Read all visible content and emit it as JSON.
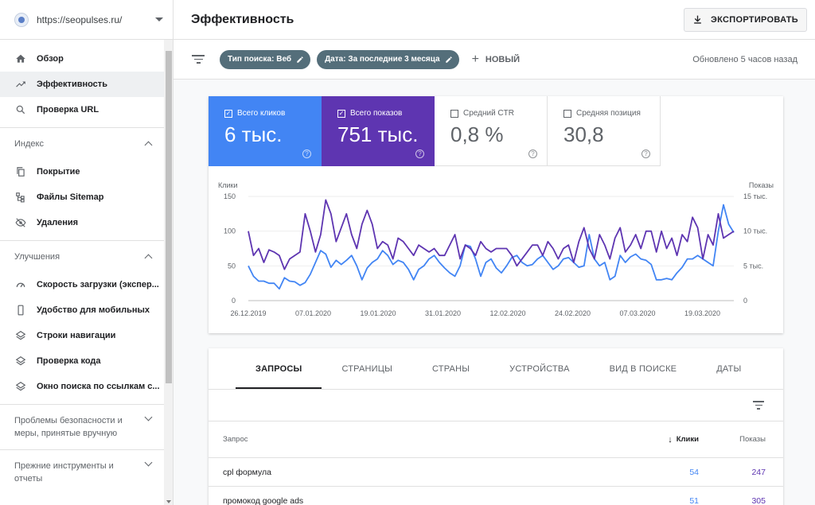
{
  "property": {
    "url": "https://seopulses.ru/"
  },
  "sidebar": {
    "top_items": [
      {
        "label": "Обзор",
        "icon": "home-icon"
      },
      {
        "label": "Эффективность",
        "icon": "trending-up-icon",
        "active": true
      },
      {
        "label": "Проверка URL",
        "icon": "search-icon"
      }
    ],
    "sections": [
      {
        "title": "Индекс",
        "items": [
          {
            "label": "Покрытие",
            "icon": "copy-icon"
          },
          {
            "label": "Файлы Sitemap",
            "icon": "sitemap-icon"
          },
          {
            "label": "Удаления",
            "icon": "eye-off-icon"
          }
        ]
      },
      {
        "title": "Улучшения",
        "items": [
          {
            "label": "Скорость загрузки (экспер...",
            "icon": "speed-icon"
          },
          {
            "label": "Удобство для мобильных",
            "icon": "phone-icon"
          },
          {
            "label": "Строки навигации",
            "icon": "layers-icon"
          },
          {
            "label": "Проверка кода",
            "icon": "layers-icon"
          },
          {
            "label": "Окно поиска по ссылкам с...",
            "icon": "layers-icon"
          }
        ]
      }
    ],
    "collapsed_sections": [
      "Проблемы безопасности и меры, принятые вручную",
      "Прежние инструменты и отчеты"
    ]
  },
  "header": {
    "title": "Эффективность",
    "export_label": "ЭКСПОРТИРОВАТЬ"
  },
  "filters": {
    "chips": [
      "Тип поиска: Веб",
      "Дата: За последние 3 месяца"
    ],
    "new_label": "НОВЫЙ",
    "updated": "Обновлено 5 часов назад"
  },
  "metrics": [
    {
      "label": "Всего кликов",
      "value": "6 тыс.",
      "checked": true,
      "color": "#4285f4"
    },
    {
      "label": "Всего показов",
      "value": "751 тыс.",
      "checked": true,
      "color": "#5e35b1"
    },
    {
      "label": "Средний CTR",
      "value": "0,8 %",
      "checked": false
    },
    {
      "label": "Средняя позиция",
      "value": "30,8",
      "checked": false
    }
  ],
  "chart_data": {
    "type": "line",
    "left_axis_label": "Клики",
    "right_axis_label": "Показы",
    "left_ticks": [
      "150",
      "100",
      "50",
      "0"
    ],
    "right_ticks": [
      "15 тыс.",
      "10 тыс.",
      "5 тыс.",
      "0"
    ],
    "ylim_left": [
      0,
      150
    ],
    "ylim_right": [
      0,
      15000
    ],
    "x_ticks": [
      "26.12.2019",
      "07.01.2020",
      "19.01.2020",
      "31.01.2020",
      "12.02.2020",
      "24.02.2020",
      "07.03.2020",
      "19.03.2020"
    ],
    "series": [
      {
        "name": "Клики",
        "color": "#4285f4",
        "axis": "left",
        "values": [
          50,
          35,
          28,
          28,
          25,
          25,
          17,
          33,
          28,
          27,
          22,
          26,
          38,
          55,
          72,
          67,
          48,
          58,
          52,
          58,
          65,
          50,
          30,
          47,
          55,
          60,
          72,
          65,
          52,
          58,
          55,
          45,
          30,
          45,
          50,
          60,
          65,
          55,
          47,
          40,
          35,
          50,
          80,
          78,
          60,
          35,
          55,
          60,
          47,
          40,
          50,
          62,
          65,
          55,
          50,
          52,
          60,
          65,
          55,
          45,
          50,
          60,
          62,
          55,
          48,
          50,
          95,
          60,
          50,
          55,
          30,
          35,
          65,
          55,
          63,
          67,
          60,
          58,
          52,
          30,
          30,
          32,
          30,
          40,
          48,
          60,
          60,
          65,
          60,
          55,
          50,
          100,
          138,
          110,
          98
        ]
      },
      {
        "name": "Показы",
        "color": "#5e35b1",
        "axis": "right",
        "values": [
          10000,
          6500,
          7500,
          5500,
          7300,
          7000,
          6500,
          4500,
          6000,
          6500,
          7000,
          12500,
          10000,
          7000,
          9500,
          14500,
          12500,
          8500,
          10500,
          12500,
          9500,
          7500,
          11000,
          13000,
          11000,
          7500,
          8500,
          8000,
          6000,
          9000,
          8500,
          7500,
          6500,
          8000,
          7500,
          7000,
          7500,
          6500,
          6500,
          8000,
          9500,
          6000,
          8000,
          7500,
          6500,
          8500,
          7500,
          7000,
          7500,
          7500,
          7500,
          6500,
          5000,
          6000,
          7000,
          8000,
          8000,
          6500,
          8500,
          7500,
          6000,
          7500,
          8000,
          5500,
          8500,
          10500,
          7500,
          6000,
          9500,
          8000,
          6000,
          9000,
          10500,
          7000,
          8000,
          9500,
          7500,
          10000,
          10000,
          7000,
          10000,
          7500,
          9000,
          6500,
          9500,
          8500,
          12000,
          10500,
          6000,
          9500,
          8000,
          12500,
          9000,
          9500,
          10000
        ]
      }
    ]
  },
  "table": {
    "tabs": [
      "ЗАПРОСЫ",
      "СТРАНИЦЫ",
      "СТРАНЫ",
      "УСТРОЙСТВА",
      "ВИД В ПОИСКЕ",
      "ДАТЫ"
    ],
    "active_tab": 0,
    "columns": [
      "Запрос",
      "Клики",
      "Показы"
    ],
    "rows": [
      {
        "query": "cpl формула",
        "clicks": "54",
        "impressions": "247"
      },
      {
        "query": "промокод google ads",
        "clicks": "51",
        "impressions": "305"
      }
    ]
  }
}
